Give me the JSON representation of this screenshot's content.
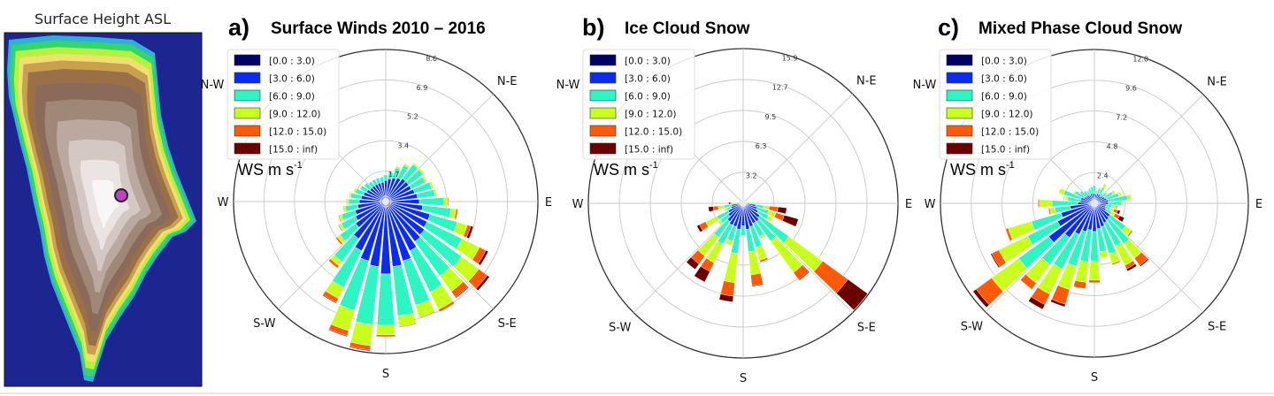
{
  "map": {
    "title": "Surface Height ASL",
    "ocean_color": "#1c2590",
    "marker_color": "#c040c0"
  },
  "legend": {
    "bins": [
      "[0.0 : 3.0)",
      "[3.0 : 6.0)",
      "[6.0 : 9.0)",
      "[9.0 : 12.0)",
      "[12.0 : 15.0)",
      "[15.0 : inf)"
    ],
    "colors": [
      "#000066",
      "#0a2cf0",
      "#2ef5c4",
      "#c8ff1e",
      "#ff5a0a",
      "#6a0000"
    ],
    "unit_label": "WS m s",
    "unit_exp": "-1"
  },
  "compass": [
    "N-E",
    "E",
    "S-E",
    "S",
    "S-W",
    "W",
    "N-W"
  ],
  "chart_data": [
    {
      "type": "windrose",
      "panel_label": "a)",
      "title": "Surface Winds 2010 – 2016",
      "ring_labels": [
        "1.7",
        "3.4",
        "5.2",
        "6.9",
        "8.6"
      ],
      "rmax": 8.6,
      "directions_deg": [
        0,
        10,
        20,
        30,
        40,
        50,
        60,
        70,
        80,
        90,
        100,
        110,
        120,
        130,
        140,
        150,
        160,
        170,
        180,
        190,
        200,
        210,
        220,
        230,
        240,
        250,
        260,
        270,
        280,
        290,
        300,
        310,
        320,
        330,
        340,
        350
      ],
      "bin_values": [
        [
          0.3,
          0.9,
          0.3,
          0,
          0,
          0
        ],
        [
          0.3,
          1.0,
          0.4,
          0.05,
          0,
          0
        ],
        [
          0.3,
          1.1,
          0.6,
          0.1,
          0,
          0
        ],
        [
          0.3,
          1.2,
          0.8,
          0.1,
          0,
          0
        ],
        [
          0.3,
          1.3,
          1.0,
          0.1,
          0,
          0
        ],
        [
          0.3,
          1.3,
          1.0,
          0.1,
          0,
          0
        ],
        [
          0.3,
          1.3,
          0.9,
          0.1,
          0,
          0
        ],
        [
          0.3,
          1.4,
          1.0,
          0.1,
          0,
          0
        ],
        [
          0.3,
          1.5,
          1.0,
          0.1,
          0,
          0
        ],
        [
          0.3,
          1.6,
          1.4,
          0.2,
          0.05,
          0
        ],
        [
          0.3,
          1.8,
          1.6,
          0.3,
          0.1,
          0
        ],
        [
          0.3,
          2.3,
          1.6,
          0.6,
          0.2,
          0.15
        ],
        [
          0.3,
          2.3,
          2.2,
          1.1,
          0.4,
          0.15
        ],
        [
          0.3,
          2.4,
          2.6,
          1.2,
          0.6,
          0.15
        ],
        [
          0.3,
          2.5,
          2.4,
          1.1,
          0.4,
          0.05
        ],
        [
          0.3,
          2.8,
          2.6,
          1.1,
          0.15,
          0
        ],
        [
          0.3,
          3.2,
          2.6,
          0.7,
          0.05,
          0
        ],
        [
          0.3,
          3.4,
          2.8,
          0.6,
          0.05,
          0
        ],
        [
          0.3,
          3.8,
          2.9,
          0.55,
          0.1,
          0
        ],
        [
          0.3,
          3.4,
          3.3,
          1.2,
          0.25,
          0.05
        ],
        [
          0.3,
          3.2,
          2.9,
          1.2,
          0.3,
          0.05
        ],
        [
          0.3,
          2.8,
          2.3,
          0.7,
          0.25,
          0.05
        ],
        [
          0.3,
          2.3,
          1.6,
          0.3,
          0.15,
          0
        ],
        [
          0.3,
          1.8,
          1.1,
          0.2,
          0.1,
          0
        ],
        [
          0.3,
          1.6,
          0.9,
          0.15,
          0.05,
          0
        ],
        [
          0.3,
          1.5,
          0.8,
          0.15,
          0.05,
          0
        ],
        [
          0.3,
          1.3,
          0.7,
          0.15,
          0,
          0
        ],
        [
          0.3,
          1.2,
          0.6,
          0.15,
          0,
          0
        ],
        [
          0.3,
          1.1,
          0.6,
          0.1,
          0,
          0
        ],
        [
          0.3,
          1.0,
          0.5,
          0.1,
          0,
          0
        ],
        [
          0.3,
          0.9,
          0.4,
          0.05,
          0,
          0
        ],
        [
          0.3,
          0.8,
          0.4,
          0,
          0,
          0
        ],
        [
          0.3,
          0.8,
          0.3,
          0,
          0,
          0
        ],
        [
          0.3,
          0.8,
          0.3,
          0,
          0,
          0
        ],
        [
          0.3,
          0.8,
          0.3,
          0,
          0,
          0
        ],
        [
          0.3,
          0.8,
          0.3,
          0,
          0,
          0
        ]
      ]
    },
    {
      "type": "windrose",
      "panel_label": "b)",
      "title": "Ice Cloud Snow",
      "ring_labels": [
        "3.2",
        "6.3",
        "9.5",
        "12.7",
        "15.9"
      ],
      "rmax": 15.9,
      "directions_deg": [
        0,
        10,
        20,
        30,
        40,
        50,
        60,
        70,
        80,
        90,
        100,
        110,
        120,
        130,
        140,
        150,
        160,
        170,
        180,
        190,
        200,
        210,
        220,
        230,
        240,
        250,
        260,
        270,
        280,
        290,
        300,
        310,
        320,
        330,
        340,
        350
      ],
      "bin_values": [
        [
          0.2,
          0.1,
          0,
          0,
          0,
          0
        ],
        [
          0.2,
          0.1,
          0,
          0,
          0,
          0
        ],
        [
          0.2,
          0.1,
          0,
          0,
          0,
          0
        ],
        [
          0.2,
          0.1,
          0,
          0,
          0,
          0
        ],
        [
          0.2,
          0.1,
          0,
          0,
          0,
          0
        ],
        [
          0.2,
          0.1,
          0,
          0,
          0,
          0
        ],
        [
          0.2,
          0.1,
          0,
          0,
          0,
          0
        ],
        [
          0.2,
          0.1,
          0.05,
          0,
          0,
          0
        ],
        [
          0.2,
          0.2,
          0.1,
          0,
          0,
          0
        ],
        [
          0.2,
          0.5,
          0.4,
          0.2,
          0,
          0
        ],
        [
          0.3,
          1.0,
          0.8,
          0.6,
          0.9,
          0.9
        ],
        [
          0.3,
          1.2,
          1.2,
          0.8,
          0.9,
          1.5
        ],
        [
          0.3,
          1.4,
          1.2,
          0.5,
          0,
          0
        ],
        [
          0.3,
          1.8,
          3.7,
          4.3,
          3.2,
          2.5
        ],
        [
          0.3,
          2.0,
          2.5,
          4.0,
          0.9,
          0.1
        ],
        [
          0.3,
          2.0,
          1.5,
          0.3,
          0,
          0
        ],
        [
          0.3,
          2.2,
          2.2,
          1.4,
          0.2,
          0
        ],
        [
          0.3,
          2.4,
          2.3,
          2.4,
          1.1,
          0.1
        ],
        [
          0.3,
          2.0,
          1.0,
          0,
          0,
          0
        ],
        [
          0.3,
          2.4,
          2.5,
          3.0,
          1.4,
          0.6
        ],
        [
          0.3,
          2.2,
          1.5,
          0.5,
          0,
          0
        ],
        [
          0.3,
          2.2,
          2.2,
          2.1,
          1.0,
          1.2
        ],
        [
          0.3,
          2.0,
          2.0,
          2.4,
          1.0,
          0.7
        ],
        [
          0.3,
          1.6,
          1.0,
          0.3,
          0,
          0
        ],
        [
          0.3,
          1.4,
          1.3,
          1.3,
          0.7,
          0.3
        ],
        [
          0.3,
          1.0,
          0.5,
          0.2,
          0,
          0
        ],
        [
          0.3,
          0.9,
          0.8,
          0.6,
          0.5,
          0.5
        ],
        [
          0.2,
          0.5,
          0.3,
          0.2,
          0.1,
          0.2
        ],
        [
          0.2,
          0.1,
          0.05,
          0,
          0,
          0
        ],
        [
          0.2,
          0.1,
          0.05,
          0,
          0,
          0
        ],
        [
          0.2,
          0.1,
          0.05,
          0,
          0,
          0
        ],
        [
          0.2,
          0.1,
          0.05,
          0,
          0,
          0
        ],
        [
          0.2,
          0.1,
          0.05,
          0,
          0,
          0
        ],
        [
          0.2,
          0.1,
          0.05,
          0,
          0,
          0
        ],
        [
          0.2,
          0.1,
          0.05,
          0,
          0,
          0
        ],
        [
          0.2,
          0.1,
          0.05,
          0,
          0,
          0
        ]
      ]
    },
    {
      "type": "windrose",
      "panel_label": "c)",
      "title": "Mixed Phase Cloud Snow",
      "ring_labels": [
        "2.4",
        "4.8",
        "7.2",
        "9.6",
        "12.0"
      ],
      "rmax": 12.0,
      "directions_deg": [
        0,
        10,
        20,
        30,
        40,
        50,
        60,
        70,
        80,
        90,
        100,
        110,
        120,
        130,
        140,
        150,
        160,
        170,
        180,
        190,
        200,
        210,
        220,
        230,
        240,
        250,
        260,
        270,
        280,
        290,
        300,
        310,
        320,
        330,
        340,
        350
      ],
      "bin_values": [
        [
          0.3,
          0.5,
          0.6,
          0,
          0,
          0
        ],
        [
          0.3,
          0.4,
          0.3,
          0,
          0,
          0
        ],
        [
          0.3,
          0.5,
          0.4,
          0.1,
          0,
          0
        ],
        [
          0.3,
          0.5,
          0.6,
          0.3,
          0,
          0
        ],
        [
          0.3,
          0.4,
          0.3,
          0,
          0,
          0
        ],
        [
          0.3,
          0.5,
          0.4,
          0.1,
          0,
          0
        ],
        [
          0.3,
          0.6,
          0.7,
          0.2,
          0,
          0
        ],
        [
          0.3,
          0.7,
          1.0,
          0.2,
          0,
          0
        ],
        [
          0.3,
          0.8,
          1.5,
          0.3,
          0,
          0
        ],
        [
          0.3,
          0.8,
          1.0,
          0.1,
          0,
          0
        ],
        [
          0.3,
          0.6,
          0.5,
          0.3,
          0.1,
          0
        ],
        [
          0.3,
          0.6,
          0.4,
          0.3,
          0.3,
          0.2
        ],
        [
          0.3,
          0.7,
          0.5,
          0.3,
          0.4,
          0.4
        ],
        [
          0.3,
          1.2,
          1.5,
          0.6,
          0.1,
          0
        ],
        [
          0.3,
          1.3,
          2.3,
          1.4,
          0.7,
          0.1
        ],
        [
          0.3,
          1.4,
          2.0,
          1.7,
          0.3,
          0.2
        ],
        [
          0.3,
          1.6,
          2.2,
          0.8,
          0.1,
          0
        ],
        [
          0.3,
          1.7,
          1.8,
          0.5,
          0,
          0
        ],
        [
          0.3,
          1.9,
          2.3,
          1.5,
          0.2,
          0
        ],
        [
          0.3,
          1.8,
          2.5,
          1.6,
          0.5,
          0
        ],
        [
          0.3,
          2.0,
          2.8,
          1.9,
          1.2,
          0.2
        ],
        [
          0.3,
          2.4,
          3.0,
          2.2,
          0.9,
          0.4
        ],
        [
          0.3,
          3.0,
          2.6,
          1.8,
          0.6,
          0
        ],
        [
          0.3,
          4.1,
          2.9,
          2.6,
          1.5,
          0.3
        ],
        [
          0.3,
          2.9,
          2.6,
          2.5,
          0.6,
          0.1
        ],
        [
          0.3,
          2.4,
          2.4,
          1.9,
          0.2,
          0
        ],
        [
          0.3,
          1.6,
          1.2,
          0.4,
          0.1,
          0
        ],
        [
          0.3,
          1.0,
          2.0,
          1.0,
          0.1,
          0
        ],
        [
          0.3,
          0.8,
          1.0,
          0.2,
          0,
          0
        ],
        [
          0.3,
          0.8,
          1.4,
          0.4,
          0,
          0
        ],
        [
          0.3,
          0.6,
          0.8,
          0.1,
          0,
          0
        ],
        [
          0.3,
          0.5,
          0.6,
          0,
          0,
          0
        ],
        [
          0.3,
          0.5,
          0.4,
          0,
          0,
          0
        ],
        [
          0.3,
          0.4,
          0.4,
          0,
          0,
          0
        ],
        [
          0.3,
          0.5,
          0.4,
          0,
          0,
          0
        ],
        [
          0.3,
          0.5,
          0.5,
          0,
          0,
          0
        ]
      ]
    }
  ]
}
